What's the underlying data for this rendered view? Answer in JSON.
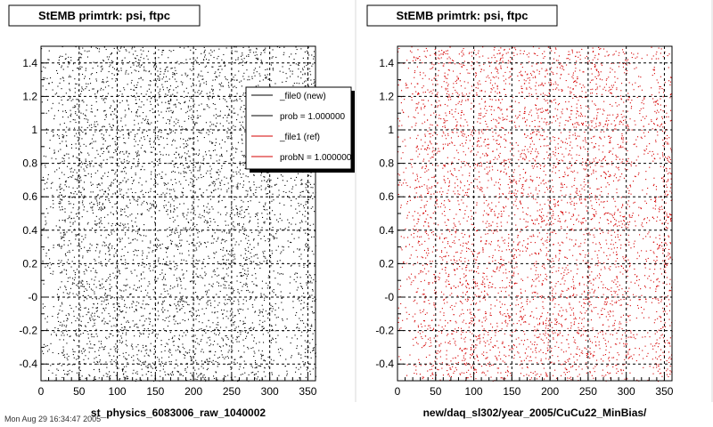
{
  "footer_text": "Mon Aug 29 16:34:47 2005",
  "chart_data": [
    {
      "type": "scatter",
      "title": "StEMB primtrk: psi, ftpc",
      "xlabel": "st_physics_6083006_raw_1040002",
      "ylabel": "",
      "xlim": [
        0,
        360
      ],
      "ylim": [
        -0.5,
        1.5
      ],
      "xticks": [
        0,
        50,
        100,
        150,
        200,
        250,
        300,
        350
      ],
      "yticks": [
        -0.4,
        -0.2,
        0,
        0.2,
        0.4,
        0.6,
        0.8,
        1,
        1.2,
        1.4
      ],
      "ytick_labels": [
        "-0.4",
        "-0.2",
        "-0",
        "0.2",
        "0.4",
        "0.6",
        "0.8",
        "1",
        "1.2",
        "1.4"
      ],
      "grid": true,
      "marker_color": "#000000",
      "density": "approximately uniform scatter over x 0-360, y -0.5-1.5, slightly sparser near x≈10 and x≈320",
      "legend": {
        "placement": "top-right",
        "entries": [
          {
            "label": "_file0 (new)",
            "color": "#000000"
          },
          {
            "label": "prob = 1.000000",
            "color": "#000000"
          },
          {
            "label": "_file1 (ref)",
            "color": "#d40000"
          },
          {
            "label": "probN = 1.000000",
            "color": "#d40000"
          }
        ]
      }
    },
    {
      "type": "scatter",
      "title": "StEMB primtrk: psi, ftpc",
      "xlabel": "new/daq_sl302/year_2005/CuCu22_MinBias/",
      "ylabel": "",
      "xlim": [
        0,
        360
      ],
      "ylim": [
        -0.5,
        1.5
      ],
      "xticks": [
        0,
        50,
        100,
        150,
        200,
        250,
        300,
        350
      ],
      "yticks": [
        -0.4,
        -0.2,
        0,
        0.2,
        0.4,
        0.6,
        0.8,
        1,
        1.2,
        1.4
      ],
      "ytick_labels": [
        "-0.4",
        "-0.2",
        "-0",
        "0.2",
        "0.4",
        "0.6",
        "0.8",
        "1",
        "1.2",
        "1.4"
      ],
      "grid": true,
      "marker_color": "#d40000",
      "density": "approximately uniform scatter over x 0-360, y -0.5-1.5, slightly sparser near x≈10 and x≈320"
    }
  ]
}
